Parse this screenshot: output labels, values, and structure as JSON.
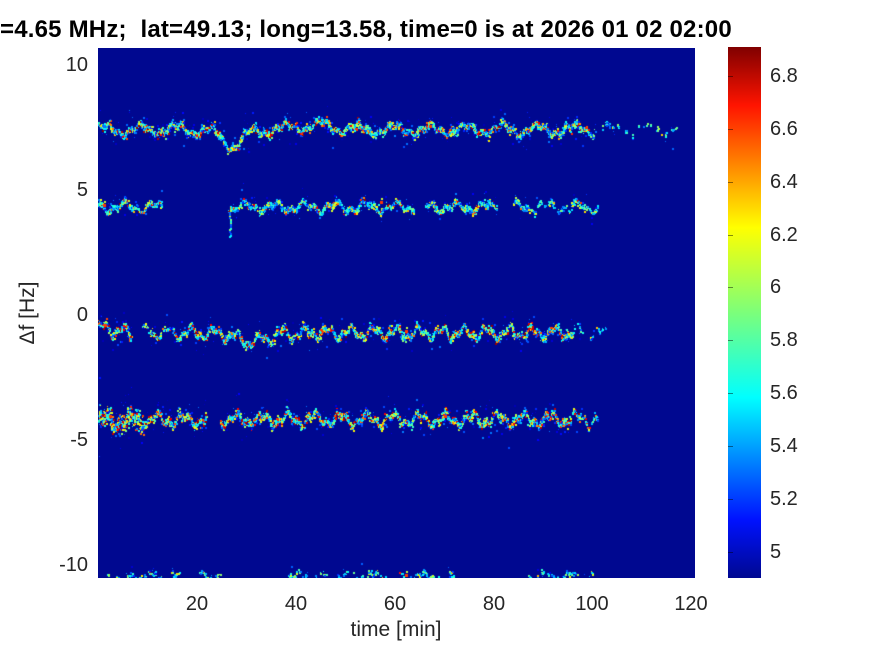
{
  "title": "=4.65 MHz;  lat=49.13; long=13.58, time=0 is at 2026 01 02 02:00",
  "chart_data": {
    "type": "heatmap",
    "subtype": "doppler-shift-spectrogram",
    "title": "=4.65 MHz;  lat=49.13; long=13.58, time=0 is at 2026 01 02 02:00",
    "xlabel": "time [min]",
    "ylabel": "Δf [Hz]",
    "xlim": [
      0,
      120.75
    ],
    "ylim": [
      -10.52,
      10.68
    ],
    "xticks": [
      20,
      40,
      60,
      80,
      100,
      120
    ],
    "xtick_labels": [
      "20",
      "40",
      "60",
      "80",
      "100",
      "120"
    ],
    "yticks": [
      10,
      5,
      0,
      -5,
      -10
    ],
    "ytick_labels": [
      "10",
      "5",
      "0",
      "-5",
      "-10"
    ],
    "grid": false,
    "legend": false,
    "background": "#000890",
    "colormap": "jet",
    "clim": [
      4.9,
      6.91
    ],
    "colorbar": {
      "position": "right",
      "range": [
        4.9,
        6.91
      ],
      "ticks": [
        6.8,
        6.6,
        6.4,
        6.2,
        6,
        5.8,
        5.6,
        5.4,
        5.2,
        5
      ],
      "tick_labels": [
        "6.8",
        "6.6",
        "6.4",
        "6.2",
        "6",
        "5.8",
        "5.6",
        "5.4",
        "5.2",
        "5"
      ],
      "gradient_stops": [
        {
          "pos": 0.0,
          "color": "#000890"
        },
        {
          "pos": 0.11,
          "color": "#0012ff"
        },
        {
          "pos": 0.34,
          "color": "#00ffff"
        },
        {
          "pos": 0.5,
          "color": "#7cff7a"
        },
        {
          "pos": 0.66,
          "color": "#ffff00"
        },
        {
          "pos": 0.89,
          "color": "#ff1400"
        },
        {
          "pos": 1.0,
          "color": "#800000"
        }
      ]
    },
    "seed": 20260102,
    "traces": [
      {
        "name": "trace-plus-7.4Hz",
        "base_df": 7.45,
        "t_start": 0,
        "t_end": 117,
        "wiggle": {
          "amps": [
            0.18,
            0.1
          ],
          "periods": [
            7.3,
            2.1
          ],
          "phases": [
            0.5,
            1.7
          ]
        },
        "events": [
          {
            "t": 27,
            "width": 4.5,
            "amp": -0.62
          },
          {
            "t": 44,
            "width": 7.0,
            "amp": 0.18
          }
        ],
        "gaps": [],
        "sparse": [
          {
            "from": 100,
            "to": 117,
            "density": 0.2
          }
        ],
        "density": 1.0,
        "spread": 0.16,
        "hot": 0.22,
        "halo": 0.3,
        "hotspots": [
          {
            "t": 52,
            "df": 7.5
          },
          {
            "t": 67,
            "df": 7.6
          }
        ]
      },
      {
        "name": "trace-plus-4.3Hz",
        "base_df": 4.35,
        "t_start": 0,
        "t_end": 101,
        "wiggle": {
          "amps": [
            0.16,
            0.1
          ],
          "periods": [
            6.1,
            2.4
          ],
          "phases": [
            2.5,
            0.3
          ]
        },
        "events": [],
        "gaps": [
          [
            12.8,
            26.2
          ],
          [
            64,
            66
          ],
          [
            80.5,
            84
          ]
        ],
        "vstreaks": [
          {
            "t": 26.6,
            "df_from": 3.15,
            "df_to": 4.25
          }
        ],
        "sparse": [
          {
            "from": 86,
            "to": 101,
            "density": 0.55
          }
        ],
        "density": 0.85,
        "spread": 0.14,
        "hot": 0.12,
        "halo": 0.22,
        "hotspots": [
          {
            "t": 1.0,
            "df": 4.45
          },
          {
            "t": 57,
            "df": 4.55
          }
        ]
      },
      {
        "name": "trace-minus-0.7Hz",
        "base_df": -0.68,
        "t_start": 0,
        "t_end": 103,
        "wiggle": {
          "amps": [
            0.2,
            0.12
          ],
          "periods": [
            4.6,
            1.9
          ],
          "phases": [
            1.2,
            2.2
          ]
        },
        "events": [
          {
            "t": 1.5,
            "width": 2.0,
            "amp": 0.3
          },
          {
            "t": 31,
            "width": 6.0,
            "amp": -0.35
          }
        ],
        "gaps": [
          [
            6.5,
            8.5
          ]
        ],
        "sparse": [
          {
            "from": 8.5,
            "to": 15,
            "density": 0.5
          },
          {
            "from": 96,
            "to": 103,
            "density": 0.28
          }
        ],
        "density": 1.0,
        "spread": 0.15,
        "hot": 0.25,
        "halo": 0.3,
        "hotspots": [
          {
            "t": 1.2,
            "df": -0.35
          },
          {
            "t": 45,
            "df": -0.55
          },
          {
            "t": 62,
            "df": -0.6
          }
        ]
      },
      {
        "name": "trace-minus-4.2Hz",
        "base_df": -4.15,
        "t_start": 0,
        "t_end": 101,
        "wiggle": {
          "amps": [
            0.2,
            0.12
          ],
          "periods": [
            5.3,
            2.0
          ],
          "phases": [
            0.1,
            1.0
          ]
        },
        "events": [
          {
            "t": 3,
            "width": 4,
            "amp": -0.1
          }
        ],
        "gaps": [
          [
            21.8,
            24.6
          ]
        ],
        "dense_head": {
          "to": 9,
          "mult": 1.9,
          "spread": 0.42
        },
        "sparse": [
          {
            "from": 95,
            "to": 101,
            "density": 0.5
          }
        ],
        "density": 1.1,
        "spread": 0.17,
        "hot": 0.3,
        "halo": 0.35,
        "hotspots": [
          {
            "t": 2.2,
            "df": -4.0
          },
          {
            "t": 36,
            "df": -4.1
          },
          {
            "t": 70,
            "df": -4.0
          }
        ]
      },
      {
        "name": "trace-bottom-edge-minus-10.4Hz",
        "base_df": -10.42,
        "t_start": 1.5,
        "t_end": 100,
        "wiggle": {
          "amps": [
            0.12,
            0.08
          ],
          "periods": [
            5.0,
            1.6
          ],
          "phases": [
            0.9,
            0.2
          ]
        },
        "events": [],
        "segments": [
          [
            1.5,
            16.5
          ],
          [
            20.5,
            25
          ],
          [
            38,
            59
          ],
          [
            60,
            72
          ],
          [
            87,
            100
          ]
        ],
        "gaps": [],
        "sparse": [
          {
            "from": 0,
            "to": 120,
            "density": 0.5
          }
        ],
        "density": 0.6,
        "spread": 0.12,
        "hot": 0.06,
        "halo": 0.2,
        "hotspots": [
          {
            "t": 62,
            "df": -10.35
          }
        ]
      }
    ]
  }
}
